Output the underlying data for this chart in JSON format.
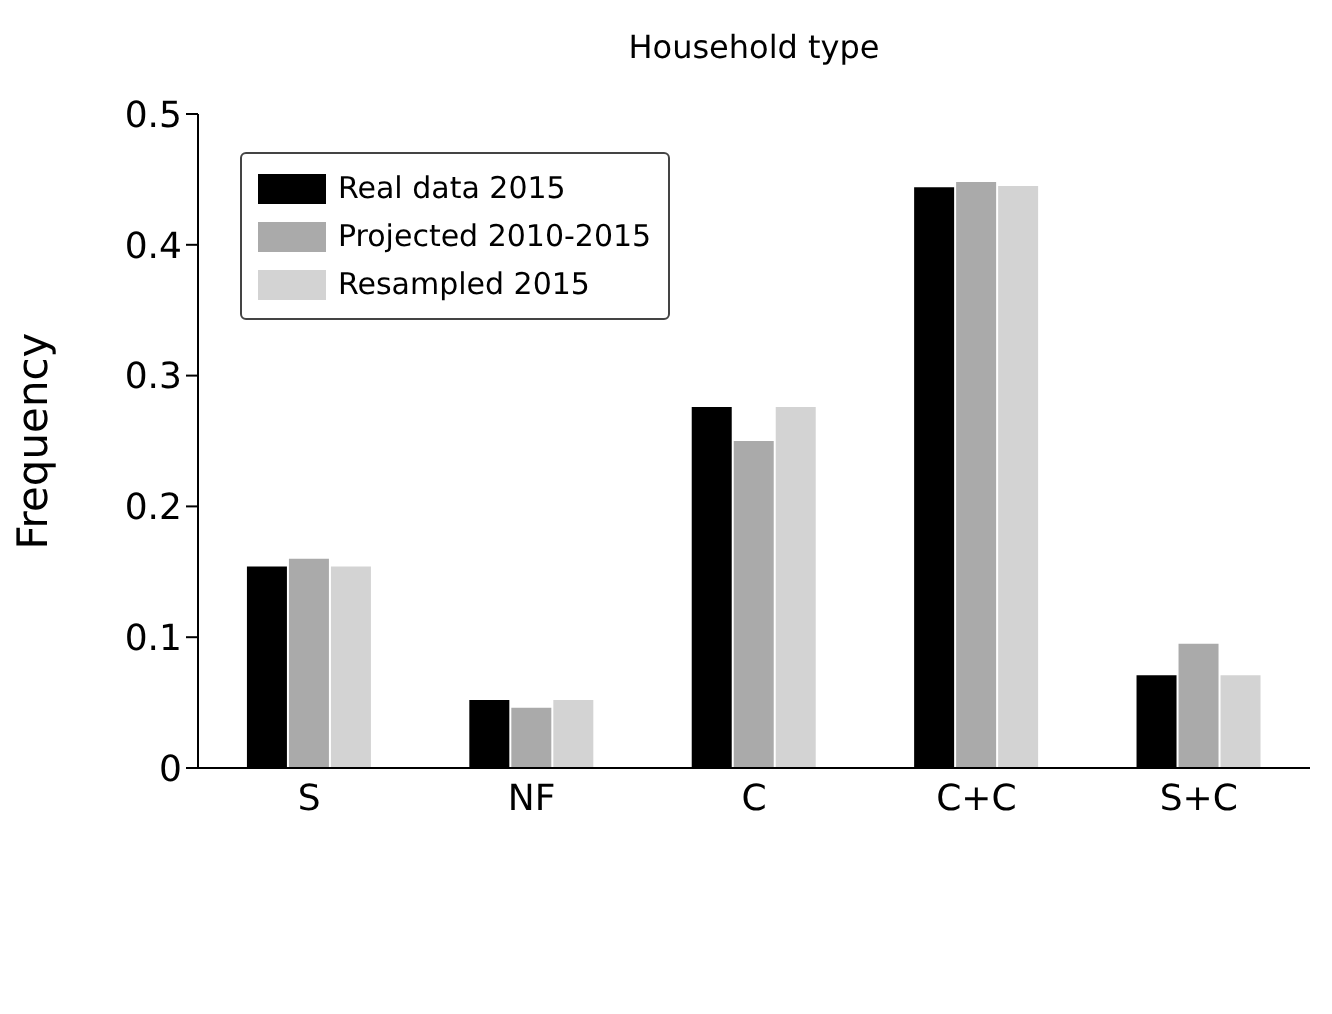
{
  "chart_data": {
    "type": "bar",
    "title": "Household type",
    "ylabel": "Frequency",
    "categories": [
      "S",
      "NF",
      "C",
      "C+C",
      "S+C"
    ],
    "series": [
      {
        "name": "Real data 2015",
        "color": "#000000",
        "values": [
          0.154,
          0.052,
          0.276,
          0.444,
          0.071
        ]
      },
      {
        "name": "Projected 2010-2015",
        "color": "#aaaaaa",
        "values": [
          0.16,
          0.046,
          0.25,
          0.448,
          0.095
        ]
      },
      {
        "name": "Resampled 2015",
        "color": "#d3d3d3",
        "values": [
          0.154,
          0.052,
          0.276,
          0.445,
          0.071
        ]
      }
    ],
    "ylim": [
      0,
      0.5
    ],
    "yticks": [
      0,
      0.1,
      0.2,
      0.3,
      0.4,
      0.5
    ],
    "grid": false,
    "legend": "top left"
  }
}
